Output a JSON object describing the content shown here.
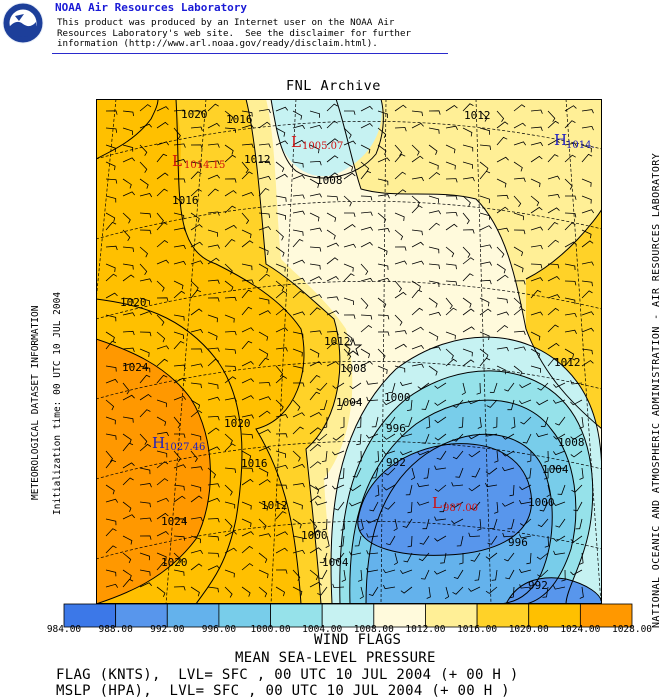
{
  "header": {
    "org_title": "NOAA Air Resources Laboratory",
    "disclaimer_lines": [
      "This product was produced by an Internet user on the NOAA Air",
      "Resources Laboratory's web site.  See the disclaimer for further",
      "information (http://www.arl.noaa.gov/ready/disclaim.html)."
    ],
    "logo_icon": "noaa-logo-icon"
  },
  "map": {
    "title": "FNL Archive",
    "left_label_1": "METEOROLOGICAL DATASET INFORMATION",
    "left_label_2": "Initialization time: 00 UTC 10 JUL 2004",
    "right_label": "NATIONAL OCEANIC AND ATMOSPHERIC ADMINISTRATION - AIR RESOURCES LABORATORY",
    "isobar_labels": [
      "1020",
      "1016",
      "1012",
      "1008",
      "1016",
      "1020",
      "1024",
      "1012",
      "1008",
      "1004",
      "1000",
      "996",
      "992",
      "1020",
      "1016",
      "1012",
      "1000",
      "1004",
      "1012",
      "1008",
      "1004",
      "1000",
      "996",
      "992",
      "1024",
      "1020",
      "1012"
    ],
    "centers": [
      {
        "type": "L",
        "value": "1005.07",
        "color": "#d01010"
      },
      {
        "type": "L",
        "value": "1014.15",
        "color": "#d01010"
      },
      {
        "type": "H",
        "value": "1014.",
        "color": "#2020c0"
      },
      {
        "type": "H",
        "value": "1027.46",
        "color": "#2020c0"
      },
      {
        "type": "L",
        "value": "987.00",
        "color": "#d01010"
      }
    ]
  },
  "chart_data": {
    "type": "heatmap",
    "title": "FNL Archive",
    "color_scale": {
      "breaks": [
        "984.00",
        "988.00",
        "992.00",
        "996.00",
        "1000.00",
        "1004.00",
        "1008.00",
        "1012.00",
        "1016.00",
        "1020.00",
        "1024.00",
        "1028.00"
      ],
      "colors": [
        "#3c78e8",
        "#5896ec",
        "#64b2ec",
        "#78cdea",
        "#96e2ea",
        "#c6f2f2",
        "#fffadc",
        "#ffef96",
        "#ffd228",
        "#ffc000",
        "#ff9800"
      ]
    }
  },
  "footer": {
    "line0": "WIND FLAGS",
    "line1": "MEAN SEA-LEVEL PRESSURE",
    "line2": "FLAG (KNTS),  LVL= SFC , 00 UTC 10 JUL 2004 (+ 00 H )",
    "line3": "MSLP (HPA),  LVL= SFC , 00 UTC 10 JUL 2004 (+ 00 H )"
  }
}
